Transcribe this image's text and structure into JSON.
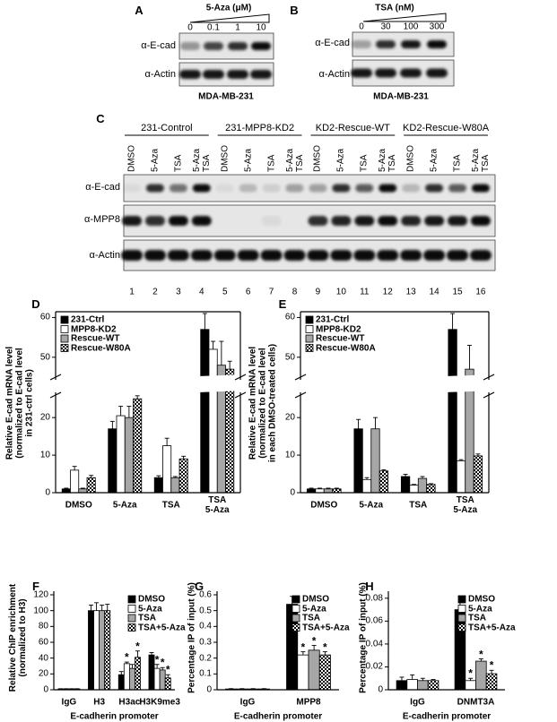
{
  "panels": {
    "A": {
      "label": "A",
      "treatment": "5-Aza (μM)",
      "lanes": [
        "0",
        "0.1",
        "1",
        "10"
      ],
      "rows": [
        "α-E-cad",
        "α-Actin"
      ],
      "cell_line": "MDA-MB-231"
    },
    "B": {
      "label": "B",
      "treatment": "TSA (nM)",
      "lanes": [
        "0",
        "30",
        "100",
        "300"
      ],
      "rows": [
        "α-E-cad",
        "α-Actin"
      ],
      "cell_line": "MDA-MB-231"
    },
    "C": {
      "label": "C",
      "groups": [
        "231-Control",
        "231-MPP8-KD2",
        "KD2-Rescue-WT",
        "KD2-Rescue-W80A"
      ],
      "lanes": [
        "DMSO",
        "5-Aza",
        "TSA",
        "5-Aza\nTSA"
      ],
      "rows": [
        "α-E-cad",
        "α-MPP8",
        "α-Actin"
      ],
      "lane_numbers": [
        1,
        2,
        3,
        4,
        5,
        6,
        7,
        8,
        9,
        10,
        11,
        12,
        13,
        14,
        15,
        16
      ]
    }
  },
  "chart_data": [
    {
      "label": "D",
      "type": "bar",
      "y_label": "Relative E-cad mRNA level\n(normalized to E-cad level\nin 231-ctrl cells)",
      "categories": [
        "DMSO",
        "5-Aza",
        "TSA",
        "TSA\n5-Aza"
      ],
      "series": [
        {
          "name": "231-Ctrl",
          "color": "#000000",
          "values": [
            1,
            17,
            4,
            57
          ],
          "errors": [
            0.2,
            2,
            0.5,
            4
          ]
        },
        {
          "name": "MPP8-KD2",
          "color": "#ffffff",
          "values": [
            6,
            20.5,
            12.5,
            52
          ],
          "errors": [
            1,
            2.5,
            2,
            2
          ]
        },
        {
          "name": "Rescue-WT",
          "color": "#a6a6a6",
          "values": [
            1,
            20,
            4,
            48
          ],
          "errors": [
            0.2,
            3,
            0.3,
            6
          ]
        },
        {
          "name": "Rescue-W80A",
          "color": "#000000",
          "pattern": "checker",
          "values": [
            4,
            25,
            9,
            47
          ],
          "errors": [
            0.6,
            0.8,
            0.7,
            2
          ]
        }
      ],
      "ylim": [
        0,
        61
      ],
      "ybreak": [
        26,
        45
      ],
      "yticks": [
        0,
        10,
        20,
        50,
        60
      ],
      "frame": true,
      "legend": "upper-left"
    },
    {
      "label": "E",
      "type": "bar",
      "y_label": "Relative E-cad mRNA level\n(normalized to E-cad level\nin each DMSO-treated cells)",
      "categories": [
        "DMSO",
        "5-Aza",
        "TSA",
        "TSA\n5-Aza"
      ],
      "series": [
        {
          "name": "231-Ctrl",
          "color": "#000000",
          "values": [
            1,
            17,
            4.3,
            57
          ],
          "errors": [
            0.2,
            2.5,
            0.6,
            4
          ]
        },
        {
          "name": "MPP8-KD2",
          "color": "#ffffff",
          "values": [
            1,
            3.5,
            2,
            8.5
          ],
          "errors": [
            0.2,
            0.5,
            0.2,
            0.3
          ]
        },
        {
          "name": "Rescue-WT",
          "color": "#a6a6a6",
          "values": [
            1,
            17,
            3.8,
            47
          ],
          "errors": [
            0.2,
            3,
            0.5,
            6
          ]
        },
        {
          "name": "Rescue-W80A",
          "color": "#000000",
          "pattern": "checker",
          "values": [
            1,
            5.8,
            2.2,
            9.8
          ],
          "errors": [
            0.2,
            0.3,
            0.2,
            0.5
          ]
        }
      ],
      "ylim": [
        0,
        61
      ],
      "ybreak": [
        26,
        45
      ],
      "yticks": [
        0,
        10,
        20,
        50,
        60
      ],
      "frame": true,
      "legend": "upper-left"
    },
    {
      "label": "F",
      "type": "bar",
      "y_label": "Relative ChIP enrichment\n(normalized to H3)",
      "x_label": "E-cadherin promoter",
      "categories": [
        "IgG",
        "H3",
        "H3ac",
        "H3K9me3"
      ],
      "series": [
        {
          "name": "DMSO",
          "color": "#000000",
          "values": [
            1,
            100,
            19,
            44
          ],
          "errors": [
            0.3,
            7,
            4,
            3
          ]
        },
        {
          "name": "5-Aza",
          "color": "#ffffff",
          "values": [
            1,
            100,
            33,
            27
          ],
          "errors": [
            0.3,
            10,
            2,
            5
          ],
          "significance": [
            null,
            null,
            "*",
            "*"
          ]
        },
        {
          "name": "TSA",
          "color": "#a6a6a6",
          "values": [
            1,
            100,
            27,
            25
          ],
          "errors": [
            0.3,
            7,
            5,
            3
          ],
          "significance": [
            null,
            null,
            null,
            "*"
          ]
        },
        {
          "name": "TSA+5-Aza",
          "color": "#000000",
          "pattern": "checker",
          "values": [
            1,
            100,
            41,
            15
          ],
          "errors": [
            0.3,
            8,
            8,
            4
          ],
          "significance": [
            null,
            null,
            "*",
            "*"
          ]
        }
      ],
      "ylim": [
        0,
        120
      ],
      "yticks": [
        0,
        20,
        40,
        60,
        80,
        100,
        120
      ],
      "legend": "upper-right"
    },
    {
      "label": "G",
      "type": "bar",
      "y_label": "Percentage IP of input (%)",
      "x_label": "E-cadherin promoter",
      "categories": [
        "IgG",
        "MPP8"
      ],
      "series": [
        {
          "name": "DMSO",
          "color": "#000000",
          "values": [
            0.005,
            0.54
          ],
          "errors": [
            0.002,
            0.05
          ]
        },
        {
          "name": "5-Aza",
          "color": "#ffffff",
          "values": [
            0.005,
            0.22
          ],
          "errors": [
            0.002,
            0.02
          ],
          "significance": [
            null,
            "*"
          ]
        },
        {
          "name": "TSA",
          "color": "#a6a6a6",
          "values": [
            0.005,
            0.25
          ],
          "errors": [
            0.002,
            0.03
          ],
          "significance": [
            null,
            "*"
          ]
        },
        {
          "name": "TSA+5-Aza",
          "color": "#000000",
          "pattern": "checker",
          "values": [
            0.005,
            0.22
          ],
          "errors": [
            0.002,
            0.02
          ],
          "significance": [
            null,
            "*"
          ]
        }
      ],
      "ylim": [
        0,
        0.6
      ],
      "yticks": [
        0,
        0.1,
        0.2,
        0.3,
        0.4,
        0.5,
        0.6
      ],
      "legend": "upper-right"
    },
    {
      "label": "H",
      "type": "bar",
      "y_label": "Percentage IP of input (%)",
      "x_label": "E-cadherin promoter",
      "categories": [
        "IgG",
        "DNMT3A"
      ],
      "series": [
        {
          "name": "DMSO",
          "color": "#000000",
          "values": [
            0.008,
            0.07
          ],
          "errors": [
            0.003,
            0.011
          ]
        },
        {
          "name": "5-Aza",
          "color": "#ffffff",
          "values": [
            0.009,
            0.008
          ],
          "errors": [
            0.004,
            0.002
          ],
          "significance": [
            null,
            "*"
          ]
        },
        {
          "name": "TSA",
          "color": "#a6a6a6",
          "values": [
            0.008,
            0.025
          ],
          "errors": [
            0.002,
            0.002
          ],
          "significance": [
            null,
            "*"
          ]
        },
        {
          "name": "TSA+5-Aza",
          "color": "#000000",
          "pattern": "checker",
          "values": [
            0.008,
            0.014
          ],
          "errors": [
            0.001,
            0.003
          ],
          "significance": [
            null,
            "*"
          ]
        }
      ],
      "ylim": [
        0,
        0.083
      ],
      "yticks": [
        0,
        0.02,
        0.04,
        0.06,
        0.08
      ],
      "legend": "upper-right"
    }
  ]
}
